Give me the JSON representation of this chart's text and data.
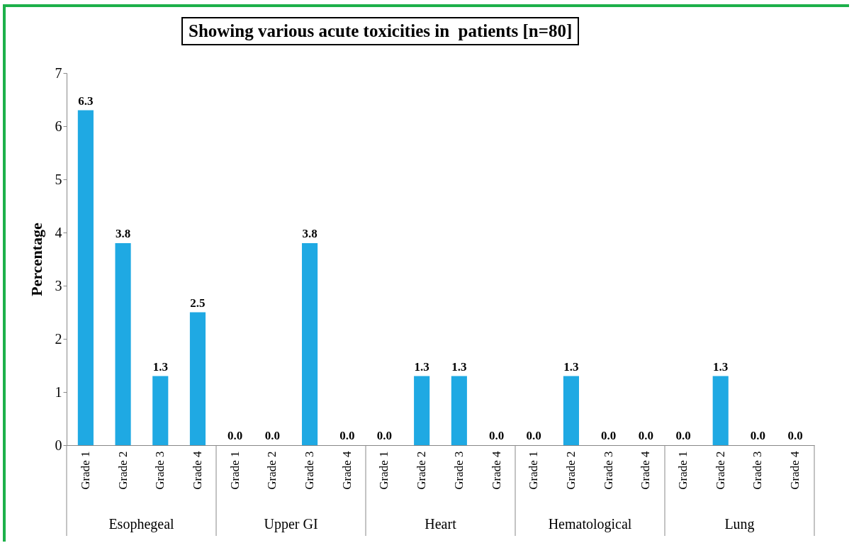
{
  "chart_data": {
    "type": "bar",
    "title": "Showing various acute toxicities in  patients [n=80]",
    "ylabel": "Percentage",
    "categories": [
      "Grade 1",
      "Grade 2",
      "Grade 3",
      "Grade 4",
      "Grade 1",
      "Grade 2",
      "Grade 3",
      "Grade 4",
      "Grade 1",
      "Grade 2",
      "Grade 3",
      "Grade 4",
      "Grade 1",
      "Grade 2",
      "Grade 3",
      "Grade 4",
      "Grade 1",
      "Grade 2",
      "Grade 3",
      "Grade 4"
    ],
    "values": [
      6.3,
      3.8,
      1.3,
      2.5,
      0,
      0,
      3.8,
      0,
      0,
      1.3,
      1.3,
      0,
      0,
      1.3,
      0,
      0,
      0,
      1.3,
      0,
      0
    ],
    "value_labels": [
      "6.3",
      "3.8",
      "1.3",
      "2.5",
      "0.0",
      "0.0",
      "3.8",
      "0.0",
      "0.0",
      "1.3",
      "1.3",
      "0.0",
      "0.0",
      "1.3",
      "0.0",
      "0.0",
      "0.0",
      "1.3",
      "0.0",
      "0.0"
    ],
    "color": "#1fa9e3",
    "ylim": [
      0,
      7
    ],
    "yticks": [
      0,
      1,
      2,
      3,
      4,
      5,
      6,
      7
    ],
    "grid": false,
    "annotations": [
      "Esophegeal",
      "Upper GI",
      "Heart",
      "Hematological",
      "Lung"
    ]
  }
}
